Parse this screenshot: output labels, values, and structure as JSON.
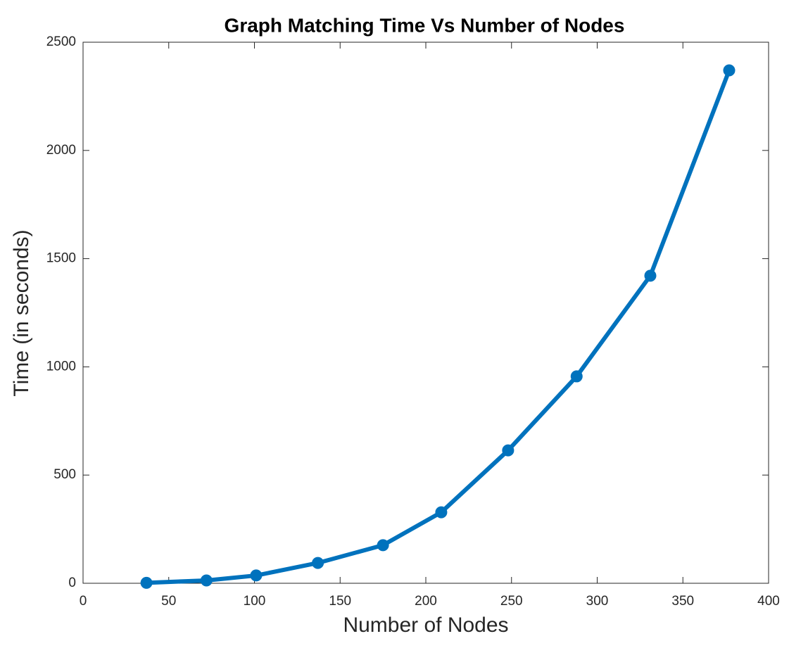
{
  "chart_data": {
    "type": "line",
    "title": "Graph Matching Time Vs Number of Nodes",
    "x_label": "Number of Nodes",
    "y_label": "Time (in seconds)",
    "x": [
      37,
      72,
      101,
      137,
      175,
      209,
      248,
      288,
      331,
      377
    ],
    "series": [
      {
        "color": "#0072bd",
        "values": [
          2,
          13,
          36,
          94,
          176,
          328,
          614,
          956,
          1421,
          2370
        ]
      }
    ],
    "xlim": [
      0,
      400
    ],
    "xticks": [
      0,
      50,
      100,
      150,
      200,
      250,
      300,
      350,
      400
    ],
    "ylim": [
      0,
      2500
    ],
    "yticks": [
      0,
      500,
      1000,
      1500,
      2000,
      2500
    ],
    "grid": false
  }
}
